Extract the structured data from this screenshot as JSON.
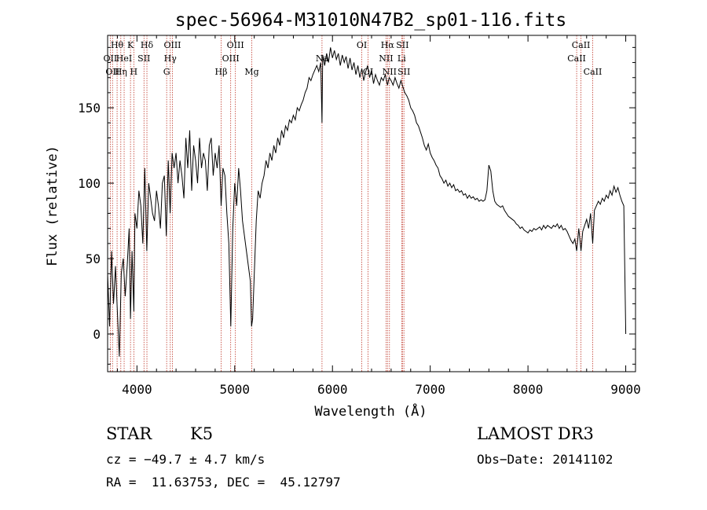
{
  "chart_data": {
    "type": "line",
    "title": "spec-56964-M31010N47B2_sp01-116.fits",
    "xlabel": "Wavelength (Å)",
    "ylabel": "Flux (relative)",
    "xlim": [
      3700,
      9100
    ],
    "ylim": [
      -25,
      198
    ],
    "xticks": [
      4000,
      5000,
      6000,
      7000,
      8000,
      9000
    ],
    "yticks": [
      0,
      50,
      100,
      150
    ],
    "grid": false,
    "series": [
      {
        "points": [
          [
            3700,
            40
          ],
          [
            3720,
            5
          ],
          [
            3740,
            55
          ],
          [
            3760,
            20
          ],
          [
            3780,
            45
          ],
          [
            3800,
            15
          ],
          [
            3820,
            -15
          ],
          [
            3840,
            40
          ],
          [
            3860,
            50
          ],
          [
            3880,
            25
          ],
          [
            3900,
            45
          ],
          [
            3920,
            70
          ],
          [
            3934,
            10
          ],
          [
            3950,
            55
          ],
          [
            3968,
            15
          ],
          [
            3980,
            80
          ],
          [
            4000,
            70
          ],
          [
            4020,
            95
          ],
          [
            4040,
            85
          ],
          [
            4060,
            60
          ],
          [
            4080,
            110
          ],
          [
            4101,
            55
          ],
          [
            4120,
            100
          ],
          [
            4140,
            90
          ],
          [
            4160,
            80
          ],
          [
            4180,
            75
          ],
          [
            4200,
            95
          ],
          [
            4220,
            85
          ],
          [
            4240,
            70
          ],
          [
            4260,
            100
          ],
          [
            4280,
            105
          ],
          [
            4300,
            65
          ],
          [
            4320,
            115
          ],
          [
            4340,
            80
          ],
          [
            4360,
            120
          ],
          [
            4380,
            110
          ],
          [
            4400,
            120
          ],
          [
            4420,
            100
          ],
          [
            4440,
            115
          ],
          [
            4460,
            105
          ],
          [
            4480,
            90
          ],
          [
            4500,
            130
          ],
          [
            4520,
            110
          ],
          [
            4540,
            135
          ],
          [
            4560,
            95
          ],
          [
            4580,
            125
          ],
          [
            4600,
            115
          ],
          [
            4620,
            100
          ],
          [
            4640,
            130
          ],
          [
            4660,
            110
          ],
          [
            4680,
            120
          ],
          [
            4700,
            115
          ],
          [
            4720,
            95
          ],
          [
            4740,
            125
          ],
          [
            4760,
            130
          ],
          [
            4780,
            105
          ],
          [
            4800,
            120
          ],
          [
            4820,
            110
          ],
          [
            4840,
            125
          ],
          [
            4861,
            85
          ],
          [
            4880,
            110
          ],
          [
            4900,
            105
          ],
          [
            4920,
            80
          ],
          [
            4940,
            60
          ],
          [
            4960,
            5
          ],
          [
            4980,
            70
          ],
          [
            5000,
            100
          ],
          [
            5020,
            85
          ],
          [
            5040,
            110
          ],
          [
            5060,
            95
          ],
          [
            5080,
            75
          ],
          [
            5100,
            65
          ],
          [
            5120,
            55
          ],
          [
            5140,
            45
          ],
          [
            5160,
            35
          ],
          [
            5172,
            5
          ],
          [
            5183,
            10
          ],
          [
            5200,
            40
          ],
          [
            5220,
            75
          ],
          [
            5240,
            95
          ],
          [
            5260,
            90
          ],
          [
            5280,
            100
          ],
          [
            5300,
            105
          ],
          [
            5320,
            115
          ],
          [
            5340,
            110
          ],
          [
            5360,
            120
          ],
          [
            5380,
            115
          ],
          [
            5400,
            125
          ],
          [
            5420,
            120
          ],
          [
            5440,
            130
          ],
          [
            5460,
            125
          ],
          [
            5480,
            135
          ],
          [
            5500,
            130
          ],
          [
            5520,
            138
          ],
          [
            5540,
            135
          ],
          [
            5560,
            142
          ],
          [
            5580,
            140
          ],
          [
            5600,
            145
          ],
          [
            5620,
            142
          ],
          [
            5640,
            150
          ],
          [
            5660,
            148
          ],
          [
            5680,
            152
          ],
          [
            5700,
            155
          ],
          [
            5720,
            160
          ],
          [
            5740,
            163
          ],
          [
            5760,
            170
          ],
          [
            5780,
            168
          ],
          [
            5800,
            172
          ],
          [
            5820,
            175
          ],
          [
            5840,
            178
          ],
          [
            5860,
            174
          ],
          [
            5880,
            180
          ],
          [
            5893,
            140
          ],
          [
            5900,
            185
          ],
          [
            5920,
            178
          ],
          [
            5940,
            186
          ],
          [
            5960,
            180
          ],
          [
            5980,
            190
          ],
          [
            6000,
            183
          ],
          [
            6020,
            188
          ],
          [
            6040,
            182
          ],
          [
            6060,
            186
          ],
          [
            6080,
            178
          ],
          [
            6100,
            185
          ],
          [
            6120,
            180
          ],
          [
            6140,
            184
          ],
          [
            6160,
            176
          ],
          [
            6180,
            183
          ],
          [
            6200,
            175
          ],
          [
            6220,
            180
          ],
          [
            6240,
            172
          ],
          [
            6260,
            178
          ],
          [
            6280,
            170
          ],
          [
            6300,
            176
          ],
          [
            6320,
            168
          ],
          [
            6340,
            174
          ],
          [
            6360,
            178
          ],
          [
            6380,
            170
          ],
          [
            6400,
            175
          ],
          [
            6420,
            166
          ],
          [
            6440,
            172
          ],
          [
            6460,
            168
          ],
          [
            6480,
            165
          ],
          [
            6500,
            170
          ],
          [
            6520,
            168
          ],
          [
            6540,
            172
          ],
          [
            6563,
            165
          ],
          [
            6580,
            170
          ],
          [
            6600,
            168
          ],
          [
            6620,
            165
          ],
          [
            6640,
            170
          ],
          [
            6660,
            166
          ],
          [
            6680,
            163
          ],
          [
            6700,
            168
          ],
          [
            6720,
            164
          ],
          [
            6740,
            160
          ],
          [
            6760,
            158
          ],
          [
            6780,
            155
          ],
          [
            6800,
            150
          ],
          [
            6820,
            148
          ],
          [
            6840,
            145
          ],
          [
            6860,
            140
          ],
          [
            6880,
            138
          ],
          [
            6900,
            134
          ],
          [
            6920,
            130
          ],
          [
            6940,
            125
          ],
          [
            6960,
            122
          ],
          [
            6980,
            126
          ],
          [
            7000,
            120
          ],
          [
            7020,
            117
          ],
          [
            7040,
            115
          ],
          [
            7060,
            112
          ],
          [
            7080,
            110
          ],
          [
            7100,
            105
          ],
          [
            7120,
            103
          ],
          [
            7140,
            100
          ],
          [
            7160,
            102
          ],
          [
            7180,
            98
          ],
          [
            7200,
            100
          ],
          [
            7220,
            97
          ],
          [
            7240,
            99
          ],
          [
            7260,
            95
          ],
          [
            7280,
            96
          ],
          [
            7300,
            94
          ],
          [
            7320,
            95
          ],
          [
            7340,
            92
          ],
          [
            7360,
            93
          ],
          [
            7380,
            90
          ],
          [
            7400,
            92
          ],
          [
            7420,
            90
          ],
          [
            7440,
            91
          ],
          [
            7460,
            89
          ],
          [
            7480,
            90
          ],
          [
            7500,
            88
          ],
          [
            7520,
            89
          ],
          [
            7540,
            88
          ],
          [
            7560,
            89
          ],
          [
            7580,
            95
          ],
          [
            7600,
            112
          ],
          [
            7620,
            108
          ],
          [
            7640,
            95
          ],
          [
            7660,
            88
          ],
          [
            7680,
            86
          ],
          [
            7700,
            85
          ],
          [
            7720,
            84
          ],
          [
            7740,
            85
          ],
          [
            7760,
            82
          ],
          [
            7780,
            80
          ],
          [
            7800,
            78
          ],
          [
            7820,
            77
          ],
          [
            7840,
            76
          ],
          [
            7860,
            75
          ],
          [
            7880,
            73
          ],
          [
            7900,
            72
          ],
          [
            7920,
            70
          ],
          [
            7940,
            71
          ],
          [
            7960,
            69
          ],
          [
            7980,
            68
          ],
          [
            8000,
            67
          ],
          [
            8020,
            69
          ],
          [
            8040,
            68
          ],
          [
            8060,
            70
          ],
          [
            8080,
            69
          ],
          [
            8100,
            70
          ],
          [
            8120,
            71
          ],
          [
            8140,
            69
          ],
          [
            8160,
            72
          ],
          [
            8180,
            70
          ],
          [
            8200,
            72
          ],
          [
            8220,
            71
          ],
          [
            8240,
            70
          ],
          [
            8260,
            72
          ],
          [
            8280,
            71
          ],
          [
            8300,
            73
          ],
          [
            8320,
            70
          ],
          [
            8340,
            72
          ],
          [
            8360,
            69
          ],
          [
            8380,
            70
          ],
          [
            8400,
            68
          ],
          [
            8420,
            65
          ],
          [
            8440,
            62
          ],
          [
            8460,
            60
          ],
          [
            8480,
            63
          ],
          [
            8498,
            55
          ],
          [
            8520,
            70
          ],
          [
            8542,
            55
          ],
          [
            8560,
            68
          ],
          [
            8580,
            72
          ],
          [
            8600,
            76
          ],
          [
            8620,
            70
          ],
          [
            8640,
            80
          ],
          [
            8662,
            60
          ],
          [
            8680,
            82
          ],
          [
            8700,
            85
          ],
          [
            8720,
            88
          ],
          [
            8740,
            86
          ],
          [
            8760,
            90
          ],
          [
            8780,
            88
          ],
          [
            8800,
            92
          ],
          [
            8820,
            90
          ],
          [
            8840,
            95
          ],
          [
            8860,
            92
          ],
          [
            8880,
            98
          ],
          [
            8900,
            94
          ],
          [
            8920,
            97
          ],
          [
            8940,
            92
          ],
          [
            8960,
            88
          ],
          [
            8980,
            85
          ],
          [
            9000,
            0
          ]
        ]
      }
    ],
    "lines": [
      {
        "wl": 3727,
        "label": "OII",
        "row": 2
      },
      {
        "wl": 3750,
        "label": "OII",
        "row": 3
      },
      {
        "wl": 3797,
        "label": "Hθ",
        "row": 1
      },
      {
        "wl": 3835,
        "label": "Hη",
        "row": 3
      },
      {
        "wl": 3869,
        "label": "HeI",
        "row": 2
      },
      {
        "wl": 3934,
        "label": "K",
        "row": 1
      },
      {
        "wl": 3968,
        "label": "H",
        "row": 3
      },
      {
        "wl": 4072,
        "label": "SII",
        "row": 2
      },
      {
        "wl": 4102,
        "label": "Hδ",
        "row": 1
      },
      {
        "wl": 4304,
        "label": "G",
        "row": 3
      },
      {
        "wl": 4341,
        "label": "Hγ",
        "row": 2
      },
      {
        "wl": 4363,
        "label": "OIII",
        "row": 1
      },
      {
        "wl": 4861,
        "label": "Hβ",
        "row": 3
      },
      {
        "wl": 4959,
        "label": "OIII",
        "row": 2
      },
      {
        "wl": 5007,
        "label": "OIII",
        "row": 1
      },
      {
        "wl": 5175,
        "label": "Mg",
        "row": 3
      },
      {
        "wl": 5893,
        "label": "Na",
        "row": 2
      },
      {
        "wl": 6300,
        "label": "OI",
        "row": 1
      },
      {
        "wl": 6364,
        "label": "OI",
        "row": 3
      },
      {
        "wl": 6548,
        "label": "NII",
        "row": 2
      },
      {
        "wl": 6563,
        "label": "Hα",
        "row": 1
      },
      {
        "wl": 6583,
        "label": "NII",
        "row": 3
      },
      {
        "wl": 6708,
        "label": "Li",
        "row": 2
      },
      {
        "wl": 6716,
        "label": "SII",
        "row": 1
      },
      {
        "wl": 6731,
        "label": "SII",
        "row": 3
      },
      {
        "wl": 8498,
        "label": "CaII",
        "row": 2
      },
      {
        "wl": 8542,
        "label": "CaII",
        "row": 1
      },
      {
        "wl": 8662,
        "label": "CaII",
        "row": 3
      }
    ],
    "line_color": "#c0392b",
    "spectrum_color": "#000000"
  },
  "info": {
    "class": "STAR",
    "subclass": "K5",
    "survey": "LAMOST DR3",
    "cz": "cz = −49.7 ± 4.7 km/s",
    "obs_date": "Obs−Date: 20141102",
    "coords": "RA =  11.63753, DEC =  45.12797"
  }
}
